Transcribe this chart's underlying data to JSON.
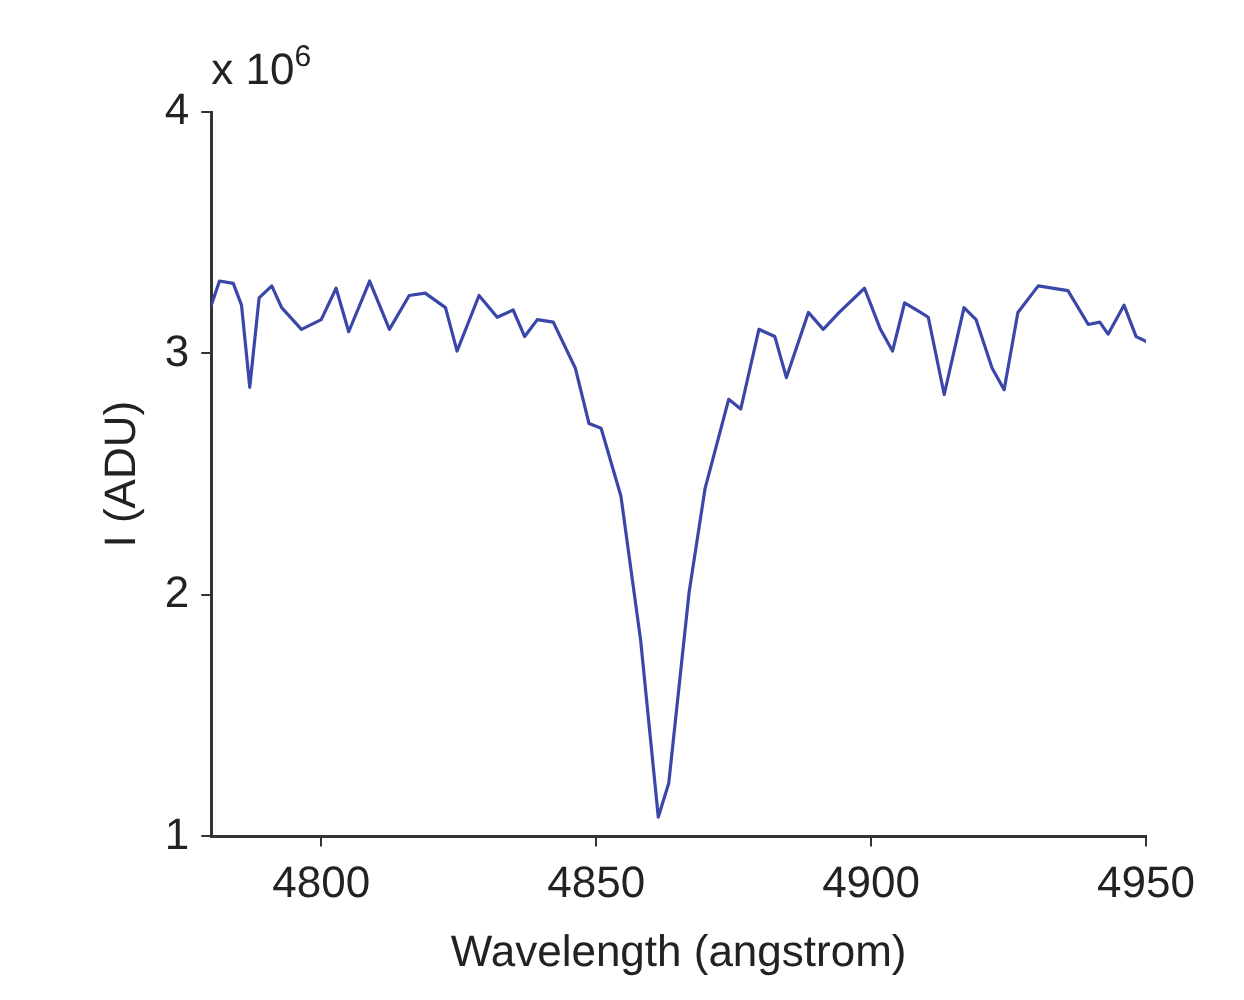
{
  "chart_data": {
    "type": "line",
    "xlabel": "Wavelength (angstrom)",
    "ylabel": "I (ADU)",
    "annotations": [
      "x 10$^{6}$"
    ],
    "xlim": [
      4780,
      4950
    ],
    "xticks": [
      4800,
      4850,
      4900,
      4950
    ],
    "ylim": [
      1,
      4
    ],
    "yticks": [
      1,
      2,
      3,
      4
    ],
    "grid": false,
    "legend": false,
    "marker": "none",
    "line_style": "solid",
    "series": [
      {
        "color": "#3a47a8",
        "x": [
          4780,
          4781.5,
          4784,
          4785.5,
          4787,
          4788.7,
          4791,
          4792.8,
          4796.4,
          4800,
          4802.7,
          4805,
          4808.8,
          4812.4,
          4816,
          4818.9,
          4822.6,
          4824.7,
          4828.7,
          4832,
          4834.9,
          4837,
          4839.3,
          4842.2,
          4846.2,
          4848.7,
          4850.9,
          4854.5,
          4858.1,
          4861.3,
          4863.2,
          4866.9,
          4869.8,
          4874.1,
          4876.3,
          4879.6,
          4882.5,
          4884.6,
          4888.6,
          4891.3,
          4894.2,
          4898.8,
          4901.7,
          4903.9,
          4906.1,
          4909,
          4910.4,
          4913.3,
          4916.9,
          4919.1,
          4922,
          4924.2,
          4926.7,
          4930.4,
          4935.8,
          4939.5,
          4941.6,
          4943.1,
          4946,
          4948.2,
          4950
        ],
        "values": [
          3.2,
          3.3,
          3.29,
          3.2,
          2.86,
          3.23,
          3.28,
          3.19,
          3.1,
          3.14,
          3.27,
          3.09,
          3.3,
          3.1,
          3.24,
          3.25,
          3.19,
          3.01,
          3.24,
          3.15,
          3.18,
          3.07,
          3.14,
          3.13,
          2.94,
          2.71,
          2.69,
          2.41,
          1.81,
          1.08,
          1.22,
          2.01,
          2.44,
          2.81,
          2.77,
          3.1,
          3.07,
          2.9,
          3.17,
          3.1,
          3.17,
          3.27,
          3.1,
          3.01,
          3.21,
          3.17,
          3.15,
          2.83,
          3.19,
          3.14,
          2.94,
          2.85,
          3.17,
          3.28,
          3.26,
          3.12,
          3.13,
          3.08,
          3.2,
          3.07,
          3.05
        ]
      }
    ]
  }
}
